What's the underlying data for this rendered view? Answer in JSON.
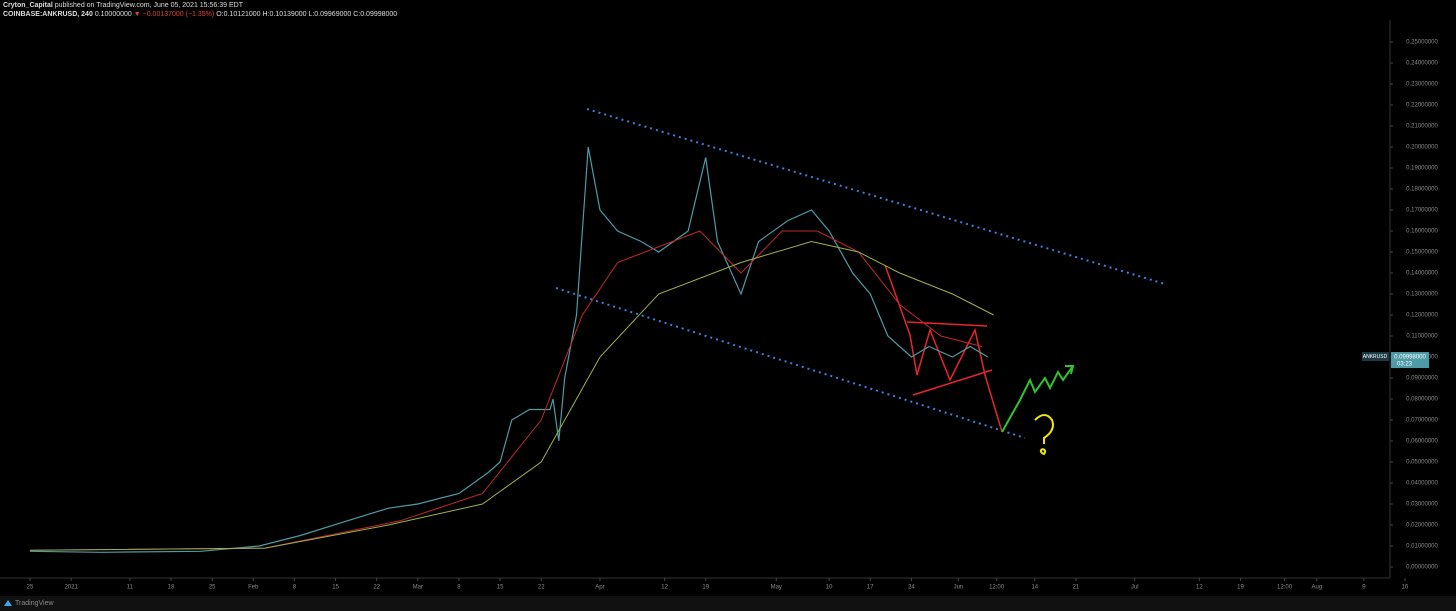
{
  "chart_data": {
    "type": "line",
    "author": "Cryton_Capital",
    "published": "published on TradingView.com, June 05, 2021 15:56:39 EDT",
    "symbol": "COINBASE:ANKRUSD, 240",
    "price": "0.10000000",
    "change": "▼ −0.00137000 (−1.35%)",
    "ohlc": "O:0.10121000 H:0.10139000 L:0.09969000 C:0.09998000",
    "symbol_label": "ANKRUSD",
    "last_price": 0.09998,
    "last_price_label": "0.09998000",
    "countdown": "03:23",
    "brand": "TradingView",
    "grid": false,
    "series": [
      {
        "name": "ANKRUSD",
        "color": "#4e9aa6",
        "x": [
          0,
          12,
          29,
          39,
          46,
          54,
          61,
          66,
          73,
          78,
          80,
          82,
          85,
          88.5,
          89,
          90,
          91,
          93,
          95,
          97,
          100,
          104,
          107,
          112,
          115,
          117,
          121,
          124,
          129,
          133,
          136,
          140,
          143,
          146,
          150,
          153,
          157,
          160,
          163
        ],
        "values": [
          0.0075,
          0.007,
          0.0075,
          0.01,
          0.015,
          0.022,
          0.028,
          0.03,
          0.035,
          0.045,
          0.05,
          0.07,
          0.075,
          0.075,
          0.08,
          0.06,
          0.09,
          0.12,
          0.2,
          0.17,
          0.16,
          0.155,
          0.15,
          0.16,
          0.195,
          0.155,
          0.13,
          0.155,
          0.165,
          0.17,
          0.16,
          0.14,
          0.13,
          0.11,
          0.1,
          0.105,
          0.1,
          0.105,
          0.09998
        ]
      },
      {
        "color": "#c0282d",
        "x": [
          0,
          40,
          63,
          77,
          87,
          94,
          100,
          114,
          121,
          128,
          134,
          141,
          148,
          155,
          162
        ],
        "values": [
          0.008,
          0.009,
          0.022,
          0.035,
          0.07,
          0.12,
          0.145,
          0.16,
          0.14,
          0.16,
          0.16,
          0.15,
          0.125,
          0.11,
          0.105
        ]
      },
      {
        "color": "#9bb24a",
        "x": [
          0,
          40,
          61,
          77,
          87,
          97,
          107,
          121,
          133,
          141,
          148,
          157,
          164
        ],
        "values": [
          0.008,
          0.009,
          0.02,
          0.03,
          0.05,
          0.1,
          0.13,
          0.145,
          0.155,
          0.15,
          0.14,
          0.13,
          0.12
        ]
      }
    ],
    "ylim": [
      0,
      0.25
    ],
    "yticks": [
      {
        "value": 0,
        "label": "0.00000000"
      },
      {
        "value": 0.01,
        "label": "0.01000000"
      },
      {
        "value": 0.02,
        "label": "0.02000000"
      },
      {
        "value": 0.03,
        "label": "0.03000000"
      },
      {
        "value": 0.04,
        "label": "0.04000000"
      },
      {
        "value": 0.05,
        "label": "0.05000000"
      },
      {
        "value": 0.06,
        "label": "0.06000000"
      },
      {
        "value": 0.07,
        "label": "0.07000000"
      },
      {
        "value": 0.08,
        "label": "0.08000000"
      },
      {
        "value": 0.09,
        "label": "0.09000000"
      },
      {
        "value": 0.1,
        "label": "0.10000000"
      },
      {
        "value": 0.11,
        "label": "0.11000000"
      },
      {
        "value": 0.12,
        "label": "0.12000000"
      },
      {
        "value": 0.13,
        "label": "0.13000000"
      },
      {
        "value": 0.14,
        "label": "0.14000000"
      },
      {
        "value": 0.15,
        "label": "0.15000000"
      },
      {
        "value": 0.16,
        "label": "0.16000000"
      },
      {
        "value": 0.17,
        "label": "0.17000000"
      },
      {
        "value": 0.18,
        "label": "0.18000000"
      },
      {
        "value": 0.19,
        "label": "0.19000000"
      },
      {
        "value": 0.2,
        "label": "0.20000000"
      },
      {
        "value": 0.21,
        "label": "0.21000000"
      },
      {
        "value": 0.22,
        "label": "0.22000000"
      },
      {
        "value": 0.23,
        "label": "0.23000000"
      },
      {
        "value": 0.24,
        "label": "0.24000000"
      },
      {
        "value": 0.25,
        "label": "0.25000000"
      }
    ],
    "xlim": [
      0,
      234
    ],
    "xticks": [
      {
        "value": 0,
        "label": "25"
      },
      {
        "value": 7,
        "label": "2021"
      },
      {
        "value": 17,
        "label": "11"
      },
      {
        "value": 24,
        "label": "18"
      },
      {
        "value": 31,
        "label": "25"
      },
      {
        "value": 38,
        "label": "Feb"
      },
      {
        "value": 45,
        "label": "8"
      },
      {
        "value": 52,
        "label": "15"
      },
      {
        "value": 59,
        "label": "22"
      },
      {
        "value": 66,
        "label": "Mar"
      },
      {
        "value": 73,
        "label": "8"
      },
      {
        "value": 80,
        "label": "15"
      },
      {
        "value": 87,
        "label": "22"
      },
      {
        "value": 97,
        "label": "Apr"
      },
      {
        "value": 108,
        "label": "12"
      },
      {
        "value": 115,
        "label": "19"
      },
      {
        "value": 127,
        "label": "May"
      },
      {
        "value": 136,
        "label": "10"
      },
      {
        "value": 143,
        "label": "17"
      },
      {
        "value": 150,
        "label": "24"
      },
      {
        "value": 158,
        "label": "Jun"
      },
      {
        "value": 164.5,
        "label": "12:00"
      },
      {
        "value": 171,
        "label": "14"
      },
      {
        "value": 178,
        "label": "21"
      },
      {
        "value": 188,
        "label": "Jul"
      },
      {
        "value": 199,
        "label": "12"
      },
      {
        "value": 206,
        "label": "19"
      },
      {
        "value": 213.5,
        "label": "12:00"
      },
      {
        "value": 219,
        "label": "Aug"
      },
      {
        "value": 227,
        "label": "9"
      },
      {
        "value": 234,
        "label": "16"
      }
    ]
  }
}
